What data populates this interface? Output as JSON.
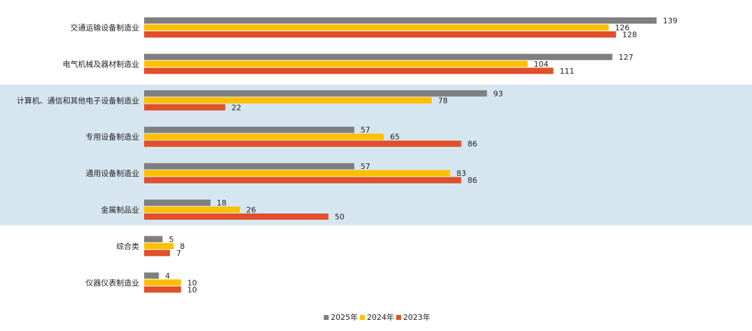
{
  "chart_data": {
    "type": "bar",
    "orientation": "horizontal",
    "categories": [
      "交通运输设备制造业",
      "电气机械及器材制造业",
      "计算机、通信和其他电子设备制造业",
      "专用设备制造业",
      "通用设备制造业",
      "金属制品业",
      "综合类",
      "仪器仪表制造业"
    ],
    "series": [
      {
        "name": "2025年",
        "color": "#7f7f7f",
        "values": [
          139,
          127,
          93,
          57,
          57,
          18,
          5,
          4
        ]
      },
      {
        "name": "2024年",
        "color": "#ffc000",
        "values": [
          126,
          104,
          78,
          65,
          83,
          26,
          8,
          10
        ]
      },
      {
        "name": "2023年",
        "color": "#e0502a",
        "values": [
          128,
          111,
          22,
          86,
          86,
          50,
          7,
          10
        ]
      }
    ],
    "highlight_band": {
      "categories": [
        "计算机、通信和其他电子设备制造业",
        "专用设备制造业",
        "通用设备制造业",
        "金属制品业"
      ],
      "color": "#d6e6f0"
    },
    "title": "",
    "xlabel": "",
    "ylabel": "",
    "xlim": [
      0,
      139
    ],
    "grid": false,
    "legend_position": "bottom-center"
  }
}
